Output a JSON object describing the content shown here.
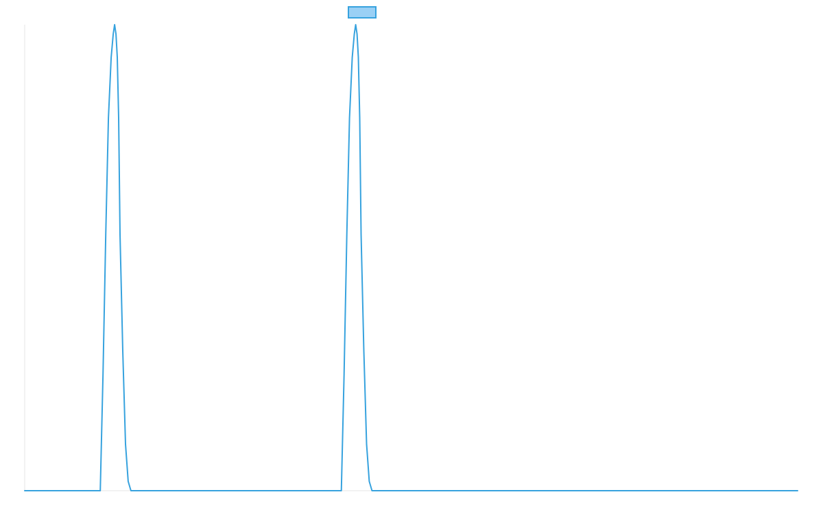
{
  "chart_data": {
    "type": "line",
    "title": "",
    "xlabel": "",
    "ylabel": "",
    "grid": false,
    "legend": "top-center",
    "colors": {
      "line": "#36a2de",
      "legend_fill": "#9ad0f5",
      "axis": "#e6e6e6"
    },
    "xlim": [
      0,
      1135
    ],
    "ylim": [
      0,
      1
    ],
    "series": [
      {
        "label": "",
        "x": [
          0,
          111,
          115,
          119,
          123,
          127,
          130,
          132,
          134,
          136,
          138,
          140,
          144,
          148,
          152,
          156,
          465,
          469,
          473,
          477,
          481,
          484,
          486,
          488,
          490,
          492,
          494,
          498,
          502,
          506,
          510,
          1135
        ],
        "y": [
          0,
          0,
          0.25,
          0.55,
          0.8,
          0.93,
          0.98,
          1.0,
          0.98,
          0.93,
          0.8,
          0.55,
          0.3,
          0.1,
          0.02,
          0,
          0,
          0.25,
          0.55,
          0.8,
          0.93,
          0.98,
          1.0,
          0.98,
          0.93,
          0.8,
          0.55,
          0.3,
          0.1,
          0.02,
          0,
          0
        ]
      }
    ]
  }
}
